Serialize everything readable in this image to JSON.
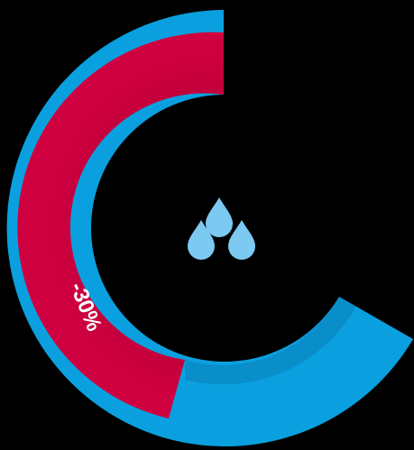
{
  "gauge": {
    "reduction_label": "-30%",
    "reduction_fraction": 0.3,
    "icon": "water-drops-icon",
    "colors": {
      "background": "#000000",
      "outer_ring": "#0aa0df",
      "reduction_arc": "#c8003c",
      "icon": "#7cc9f2"
    }
  }
}
